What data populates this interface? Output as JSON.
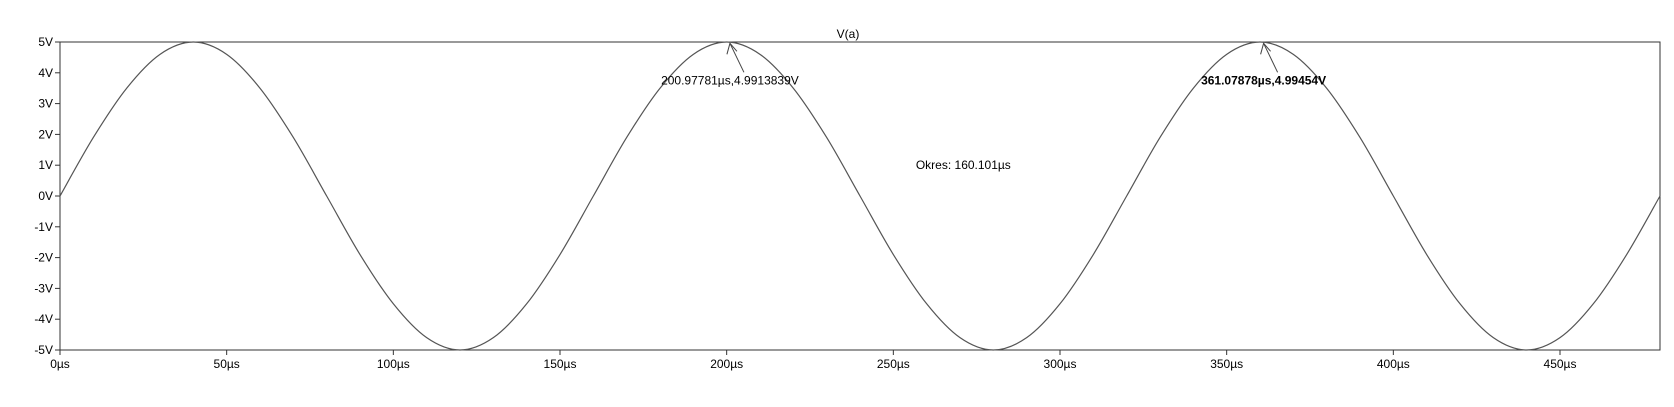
{
  "chart_data": {
    "type": "line",
    "title": "V(a)",
    "xlabel": "",
    "ylabel": "",
    "x_unit": "µs",
    "y_unit": "V",
    "xlim": [
      0,
      480
    ],
    "ylim": [
      -5,
      5
    ],
    "x_ticks": [
      0,
      50,
      100,
      150,
      200,
      250,
      300,
      350,
      400,
      450
    ],
    "x_tick_labels": [
      "0µs",
      "50µs",
      "100µs",
      "150µs",
      "200µs",
      "250µs",
      "300µs",
      "350µs",
      "400µs",
      "450µs"
    ],
    "y_ticks": [
      5,
      4,
      3,
      2,
      1,
      0,
      -1,
      -2,
      -3,
      -4,
      -5
    ],
    "y_tick_labels": [
      "5V",
      "4V",
      "3V",
      "2V",
      "1V",
      "0V",
      "-1V",
      "-2V",
      "-3V",
      "-4V",
      "-5V"
    ],
    "grid": false,
    "legend": "none",
    "series": [
      {
        "name": "V(a)",
        "color": "#555555",
        "x": [
          0,
          10,
          20,
          30,
          40,
          50,
          60,
          70,
          80,
          90,
          100,
          110,
          120,
          130,
          140,
          150,
          160,
          170,
          180,
          190,
          200,
          210,
          220,
          230,
          240,
          250,
          260,
          270,
          280,
          290,
          300,
          310,
          320,
          330,
          340,
          350,
          360,
          370,
          380,
          390,
          400,
          410,
          420,
          430,
          440,
          450,
          460,
          470,
          480
        ],
        "y": [
          0,
          1.9,
          3.5,
          4.6,
          5,
          4.6,
          3.5,
          1.9,
          0,
          -1.9,
          -3.5,
          -4.6,
          -5,
          -4.6,
          -3.5,
          -1.9,
          0,
          1.9,
          3.5,
          4.6,
          5,
          4.6,
          3.5,
          1.9,
          0,
          -1.9,
          -3.5,
          -4.6,
          -5,
          -4.6,
          -3.5,
          -1.9,
          0,
          1.9,
          3.5,
          4.6,
          5,
          4.6,
          3.5,
          1.9,
          0,
          -1.9,
          -3.5,
          -4.6,
          -5,
          -4.6,
          -3.5,
          -1.9,
          0
        ]
      }
    ],
    "annotations": [
      {
        "text": "200.97781µs,4.9913839V",
        "x": 200.98,
        "y": 4.99,
        "bold": false
      },
      {
        "text": "361.07878µs,4.99454V",
        "x": 361.08,
        "y": 4.99,
        "bold": true
      },
      {
        "text": "Okres: 160.101µs",
        "x": 271,
        "y": 1,
        "bold": false
      }
    ]
  }
}
